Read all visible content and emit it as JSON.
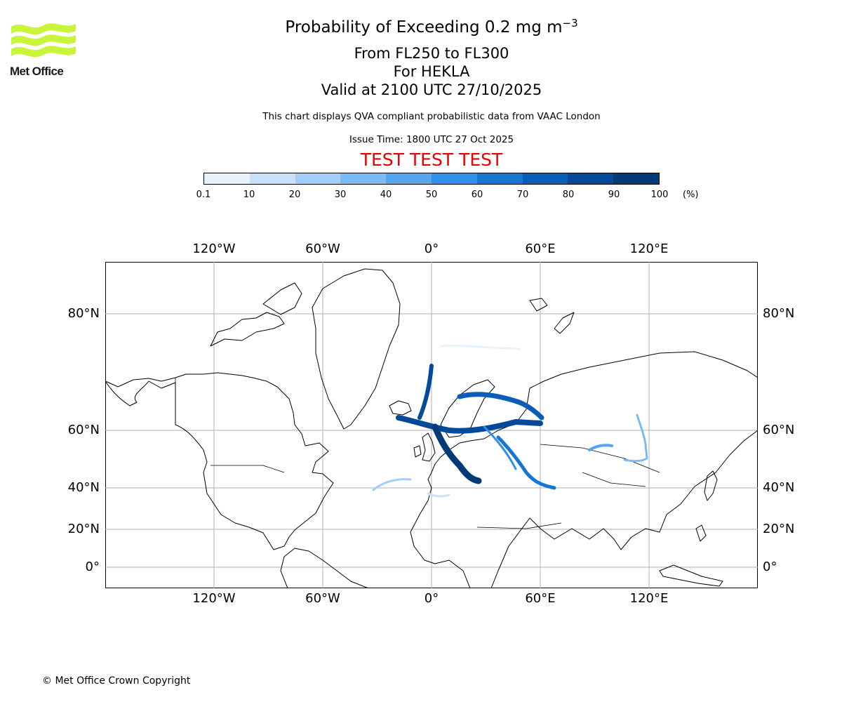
{
  "logo": {
    "text": "Met Office",
    "color": "#c8f53a"
  },
  "header": {
    "title_main": "Probability of Exceeding 0.2 mg m",
    "title_exponent": "−3",
    "flight_levels": "From FL250 to FL300",
    "volcano": "For HEKLA",
    "valid_time": "Valid at 2100 UTC 27/10/2025",
    "description": "This chart displays QVA compliant probabilistic data from VAAC London",
    "issue_time": "Issue Time: 1800 UTC 27 Oct 2025",
    "test_banner": "TEST TEST TEST"
  },
  "colorbar": {
    "labels": [
      "0.1",
      "10",
      "20",
      "30",
      "40",
      "50",
      "60",
      "70",
      "80",
      "90",
      "100"
    ],
    "unit": "(%)",
    "colors": [
      "#e8f2fd",
      "#c7e1fa",
      "#a3cef6",
      "#7cbaf3",
      "#55a5ef",
      "#2f8fe9",
      "#1676d6",
      "#0a5eb8",
      "#044a98",
      "#023a78",
      "#012a56"
    ]
  },
  "map": {
    "longitude_labels": [
      "120°W",
      "60°W",
      "0°",
      "60°E",
      "120°E"
    ],
    "latitude_labels": [
      "80°N",
      "60°N",
      "40°N",
      "20°N",
      "0°"
    ],
    "gridline_color": "#b0b0b0",
    "ash_color": "#0a5eb8"
  },
  "footer": {
    "copyright": "© Met Office Crown Copyright"
  }
}
